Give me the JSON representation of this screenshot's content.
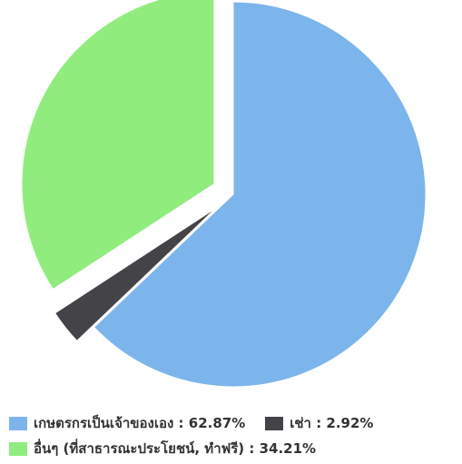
{
  "chart_data": {
    "type": "pie",
    "title": "",
    "slices": [
      {
        "label": "เกษตรกรเป็นเจ้าของเอง",
        "value": 62.87,
        "color": "#7cb5ec",
        "exploded": false
      },
      {
        "label": "เช่า",
        "value": 2.92,
        "color": "#434348",
        "exploded": true
      },
      {
        "label": "อื่นๆ (ที่สาธารณะประโยชน์, ทำฟรี)",
        "value": 34.21,
        "color": "#90ed7d",
        "exploded": true
      }
    ],
    "legend_position": "bottom"
  },
  "legend": {
    "items": [
      {
        "text": "เกษตรกรเป็นเจ้าของเอง : 62.87%",
        "color": "#7cb5ec"
      },
      {
        "text": "เช่า : 2.92%",
        "color": "#434348"
      },
      {
        "text": "อื่นๆ (ที่สาธารณะประโยชน์, ทำฟรี) : 34.21%",
        "color": "#90ed7d"
      }
    ]
  }
}
